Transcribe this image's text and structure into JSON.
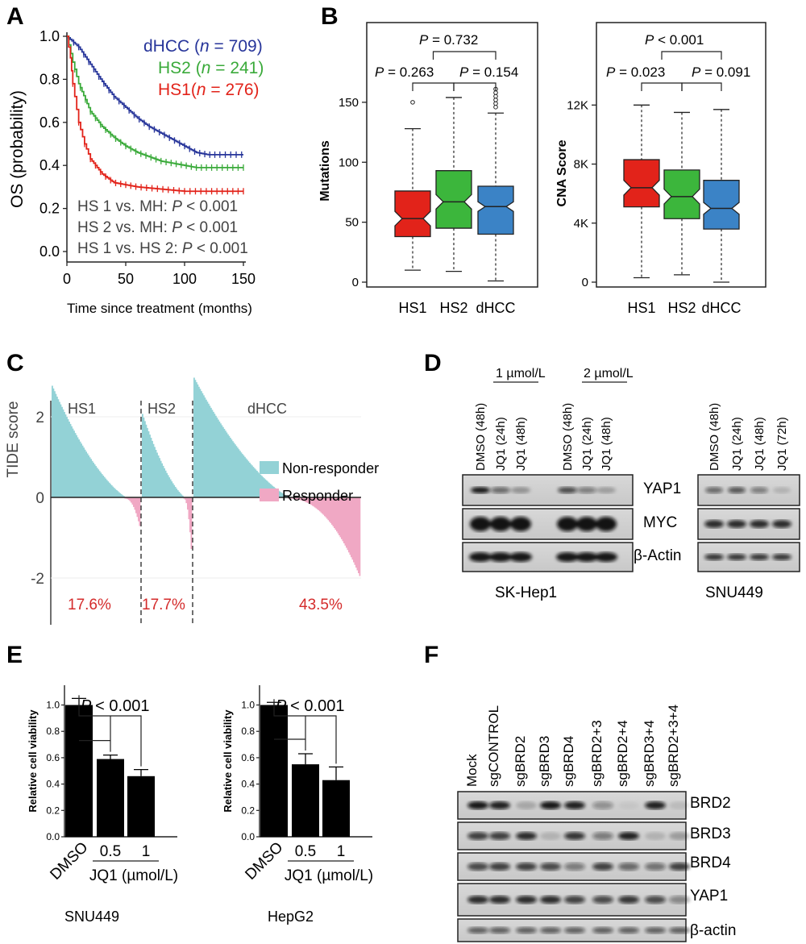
{
  "panelA": {
    "letter": "A",
    "ylabel": "OS (probability)",
    "xlabel": "Time since treatment (months)",
    "yticks": [
      "0.0",
      "0.2",
      "0.4",
      "0.6",
      "0.8",
      "1.0"
    ],
    "xticks": [
      "0",
      "50",
      "100",
      "150"
    ],
    "legend": [
      {
        "name": "dHCC",
        "n": "709",
        "color": "#27359a"
      },
      {
        "name": "HS2",
        "n": "241",
        "color": "#3aaa3a"
      },
      {
        "name": "HS1",
        "n": "276",
        "color": "#e2231a"
      }
    ],
    "stats": [
      {
        "label": "HS 1 vs. MH:",
        "p": "< 0.001"
      },
      {
        "label": "HS 2 vs. MH:",
        "p": "< 0.001"
      },
      {
        "label": "HS 1 vs. HS 2:",
        "p": "< 0.001"
      }
    ]
  },
  "panelB": {
    "letter": "B",
    "groups": [
      "HS1",
      "HS2",
      "dHCC"
    ],
    "colors": [
      "#e2231a",
      "#3cb63c",
      "#3b83c6"
    ],
    "mutations": {
      "ylabel": "Mutations",
      "yticks": [
        "0",
        "50",
        "100",
        "150"
      ],
      "p_left": "= 0.263",
      "p_right": "= 0.154",
      "p_top": "= 0.732"
    },
    "cna": {
      "ylabel": "CNA Score",
      "yticks": [
        "0",
        "4K",
        "8K",
        "12K"
      ],
      "p_left": "= 0.023",
      "p_right": "= 0.091",
      "p_top": "< 0.001"
    }
  },
  "panelC": {
    "letter": "C",
    "ylabel": "TIDE score",
    "yticks": [
      "-2",
      "0",
      "2"
    ],
    "groups": [
      "HS1",
      "HS2",
      "dHCC"
    ],
    "percents": [
      "17.6%",
      "17.7%",
      "43.5%"
    ],
    "legend": [
      {
        "name": "Non-responder",
        "color": "#93d2d6"
      },
      {
        "name": "Responder",
        "color": "#f0a8c4"
      }
    ]
  },
  "panelD": {
    "letter": "D",
    "conc1": "1 µmol/L",
    "conc2": "2 µmol/L",
    "lanes_sk": [
      "DMSO (48h)",
      "JQ1 (24h)",
      "JQ1 (48h)",
      "DMSO (48h)",
      "JQ1 (24h)",
      "JQ1 (48h)"
    ],
    "lanes_snu": [
      "DMSO (48h)",
      "JQ1 (24h)",
      "JQ1 (48h)",
      "JQ1 (72h)"
    ],
    "proteins": [
      "YAP1",
      "MYC",
      "β-Actin"
    ],
    "cell1": "SK-Hep1",
    "cell2": "SNU449"
  },
  "panelE": {
    "letter": "E",
    "ylabel": "Relative cell viability",
    "xlabel": "JQ1 (µmol/L)",
    "categories": [
      "DMSO",
      "0.5",
      "1"
    ],
    "p": "< 0.001",
    "yticks": [
      "0.0",
      "0.2",
      "0.4",
      "0.6",
      "0.8",
      "1.0"
    ],
    "cell1": "SNU449",
    "cell2": "HepG2"
  },
  "panelF": {
    "letter": "F",
    "lanes": [
      "Mock",
      "sgCONTROL",
      "sgBRD2",
      "sgBRD3",
      "sgBRD4",
      "sgBRD2+3",
      "sgBRD2+4",
      "sgBRD3+4",
      "sgBRD2+3+4"
    ],
    "proteins": [
      "BRD2",
      "BRD3",
      "BRD4",
      "YAP1",
      "β-actin"
    ]
  },
  "chart_data": [
    {
      "type": "line",
      "xlabel": "Time since treatment (months)",
      "ylabel": "OS (probability)",
      "xlim": [
        0,
        150
      ],
      "ylim": [
        0,
        1
      ],
      "series": [
        {
          "name": "dHCC",
          "x": [
            0,
            10,
            20,
            30,
            40,
            50,
            60,
            70,
            80,
            90,
            100,
            110,
            120,
            130,
            150
          ],
          "values": [
            1.0,
            0.95,
            0.87,
            0.79,
            0.72,
            0.67,
            0.62,
            0.58,
            0.55,
            0.52,
            0.49,
            0.46,
            0.45,
            0.45,
            0.45
          ]
        },
        {
          "name": "HS2",
          "x": [
            0,
            5,
            10,
            20,
            30,
            40,
            50,
            60,
            70,
            80,
            90,
            100,
            110,
            120,
            150
          ],
          "values": [
            1.0,
            0.88,
            0.78,
            0.65,
            0.58,
            0.53,
            0.49,
            0.46,
            0.44,
            0.42,
            0.41,
            0.4,
            0.39,
            0.39,
            0.39
          ]
        },
        {
          "name": "HS1",
          "x": [
            0,
            3,
            5,
            10,
            15,
            20,
            30,
            40,
            50,
            60,
            80,
            100,
            120,
            150
          ],
          "values": [
            1.0,
            0.9,
            0.78,
            0.6,
            0.5,
            0.43,
            0.36,
            0.32,
            0.31,
            0.3,
            0.29,
            0.28,
            0.28,
            0.28
          ]
        }
      ]
    },
    {
      "type": "box",
      "ylabel": "Mutations",
      "categories": [
        "HS1",
        "HS2",
        "dHCC"
      ],
      "ylim": [
        0,
        160
      ],
      "boxes": [
        {
          "min": 10,
          "q1": 38,
          "median": 53,
          "q3": 76,
          "max": 128,
          "notch": [
            47,
            59
          ]
        },
        {
          "min": 9,
          "q1": 45,
          "median": 67,
          "q3": 93,
          "max": 154,
          "notch": [
            61,
            73
          ]
        },
        {
          "min": 1,
          "q1": 40,
          "median": 63,
          "q3": 80,
          "max": 141,
          "notch": [
            59,
            67
          ]
        }
      ]
    },
    {
      "type": "box",
      "ylabel": "CNA Score",
      "categories": [
        "HS1",
        "HS2",
        "dHCC"
      ],
      "ylim": [
        0,
        13000
      ],
      "boxes": [
        {
          "min": 300,
          "q1": 5100,
          "median": 6400,
          "q3": 8300,
          "max": 12000,
          "notch": [
            5900,
            6900
          ]
        },
        {
          "min": 500,
          "q1": 4300,
          "median": 5800,
          "q3": 7600,
          "max": 11500,
          "notch": [
            5300,
            6300
          ]
        },
        {
          "min": 0,
          "q1": 3600,
          "median": 5000,
          "q3": 6900,
          "max": 11700,
          "notch": [
            4600,
            5400
          ]
        }
      ]
    },
    {
      "type": "bar",
      "ylabel": "Relative cell viability",
      "categories": [
        "DMSO",
        "0.5",
        "1"
      ],
      "values": [
        1.0,
        0.59,
        0.46
      ],
      "errors": [
        0.05,
        0.03,
        0.05
      ],
      "ylim": [
        0,
        1.15
      ]
    },
    {
      "type": "bar",
      "ylabel": "Relative cell viability",
      "categories": [
        "DMSO",
        "0.5",
        "1"
      ],
      "values": [
        1.0,
        0.55,
        0.43
      ],
      "errors": [
        0.02,
        0.08,
        0.1
      ],
      "ylim": [
        0,
        1.15
      ]
    }
  ]
}
